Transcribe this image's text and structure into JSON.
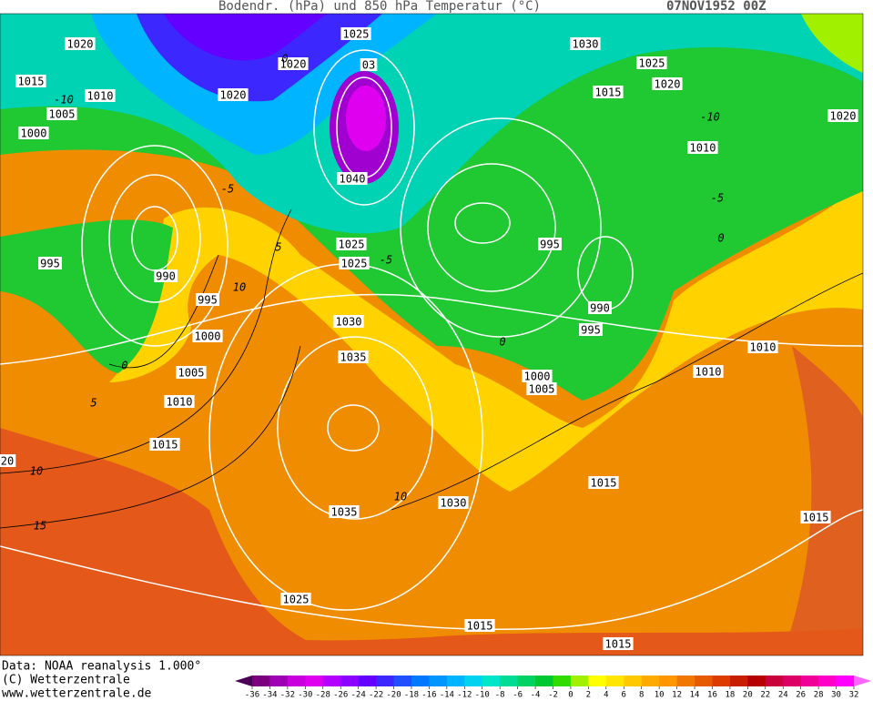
{
  "header": {
    "title": "Bodendr. (hPa) und 850 hPa Temperatur (°C)",
    "date": "07NOV1952 00Z"
  },
  "isobar_labels": [
    "1020",
    "1015",
    "1010",
    "1005",
    "1000",
    "1020",
    "1020",
    "1025",
    "03",
    "1040",
    "1025",
    "1025",
    "995",
    "990",
    "995",
    "1000",
    "1005",
    "1010",
    "1015",
    "20",
    "1030",
    "1035",
    "1035",
    "1030",
    "1025",
    "1015",
    "1015",
    "1015",
    "1015",
    "1000",
    "1005",
    "990",
    "995",
    "995",
    "1010",
    "1010",
    "1030",
    "1025",
    "1015",
    "1020",
    "1010",
    "1020"
  ],
  "temperature_labels": [
    "-10",
    "-5",
    "0",
    "5",
    "10",
    "0",
    "5",
    "10",
    "15",
    "10",
    "0",
    "-5",
    "-10",
    "-5",
    "0"
  ],
  "footer": [
    "Data: NOAA reanalysis 1.000°",
    "(C) Wetterzentrale",
    "www.wetterzentrale.de"
  ],
  "colorbar": {
    "ticks": [
      -36,
      -34,
      -32,
      -30,
      -28,
      -26,
      -24,
      -22,
      -20,
      -18,
      -16,
      -14,
      -12,
      -10,
      -8,
      -6,
      -4,
      -2,
      0,
      2,
      4,
      6,
      8,
      10,
      12,
      14,
      16,
      18,
      20,
      22,
      24,
      26,
      28,
      30,
      32
    ],
    "colors": [
      "#4b0055",
      "#7a0080",
      "#a000b4",
      "#c800dc",
      "#e000f0",
      "#b400ff",
      "#8c00ff",
      "#6400ff",
      "#3c28ff",
      "#1e50ff",
      "#0078ff",
      "#0096ff",
      "#00b4ff",
      "#00d2f0",
      "#00e6c8",
      "#00dc96",
      "#00d264",
      "#00c832",
      "#32dc00",
      "#a0f000",
      "#ffff00",
      "#ffe600",
      "#ffc800",
      "#ffaa00",
      "#ff9600",
      "#f07800",
      "#e65a00",
      "#dc3c00",
      "#c81e00",
      "#b40000",
      "#c8003c",
      "#dc0064",
      "#f00096",
      "#ff00c8",
      "#ff00ff",
      "#ff64ff"
    ]
  }
}
